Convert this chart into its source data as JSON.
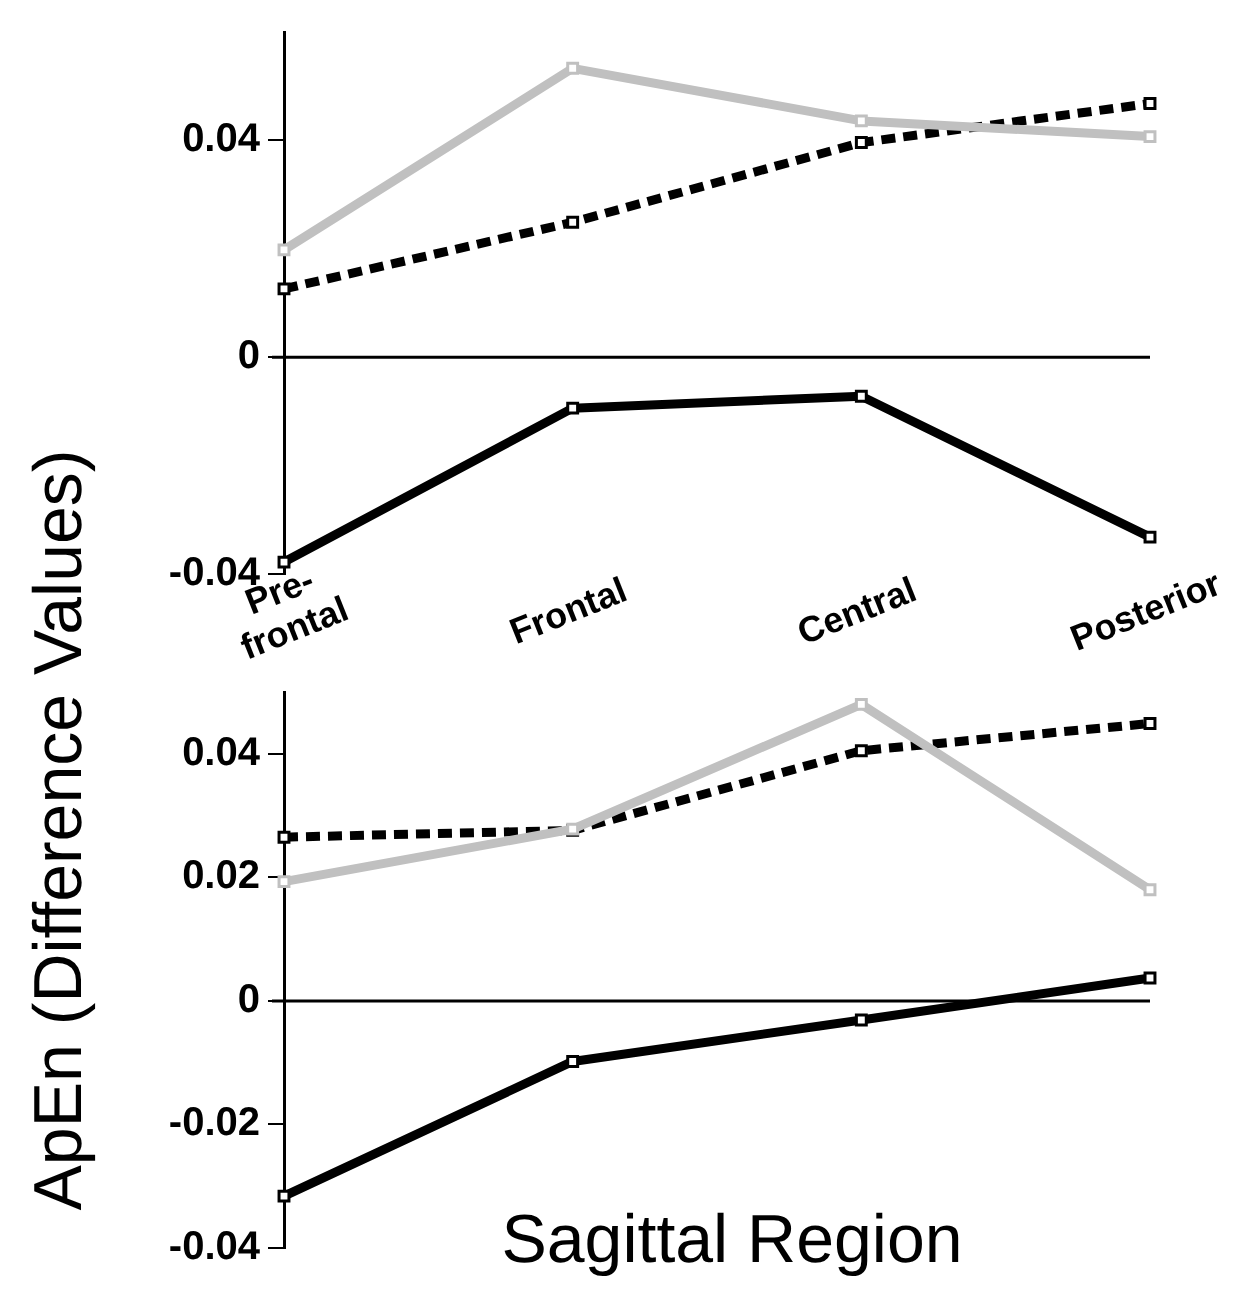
{
  "chart_data": [
    {
      "type": "line",
      "categories": [
        "Pre-frontal",
        "Frontal",
        "Central",
        "Posterior"
      ],
      "ylabel": "ApEn (Difference Values)",
      "ylim": [
        -0.04,
        0.06
      ],
      "yticks": [
        -0.04,
        0,
        0.04
      ],
      "marker": "square",
      "grid": false,
      "ref_lines": [
        {
          "axis": "y",
          "value": 0,
          "color": "#000000"
        }
      ],
      "series": [
        {
          "color": "#c0c0c0",
          "line_style": "solid",
          "values": [
            0.0198,
            0.0533,
            0.0436,
            0.0407
          ]
        },
        {
          "color": "#000000",
          "line_style": "dashed",
          "values": [
            0.0126,
            0.0249,
            0.0396,
            0.0468
          ]
        },
        {
          "color": "#000000",
          "line_style": "solid",
          "values": [
            -0.0378,
            -0.0094,
            -0.0072,
            -0.0332
          ]
        }
      ]
    },
    {
      "type": "line",
      "categories": [
        null,
        null,
        null,
        null
      ],
      "xlabel": "Sagittal Region",
      "ylim": [
        -0.04,
        0.05
      ],
      "yticks": [
        -0.04,
        -0.02,
        0,
        0.02,
        0.04
      ],
      "tick_labels": "y",
      "marker": "square",
      "grid": false,
      "ref_lines": [
        {
          "axis": "y",
          "value": 0,
          "color": "#000000"
        }
      ],
      "series": [
        {
          "color": "#c0c0c0",
          "line_style": "solid",
          "values": [
            0.0193,
            0.0278,
            0.048,
            0.018
          ]
        },
        {
          "color": "#000000",
          "line_style": "dashed",
          "values": [
            0.0265,
            0.0276,
            0.0405,
            0.0449
          ]
        },
        {
          "color": "#000000",
          "line_style": "solid",
          "values": [
            -0.0316,
            -0.0098,
            -0.0031,
            0.0037
          ]
        }
      ]
    }
  ]
}
